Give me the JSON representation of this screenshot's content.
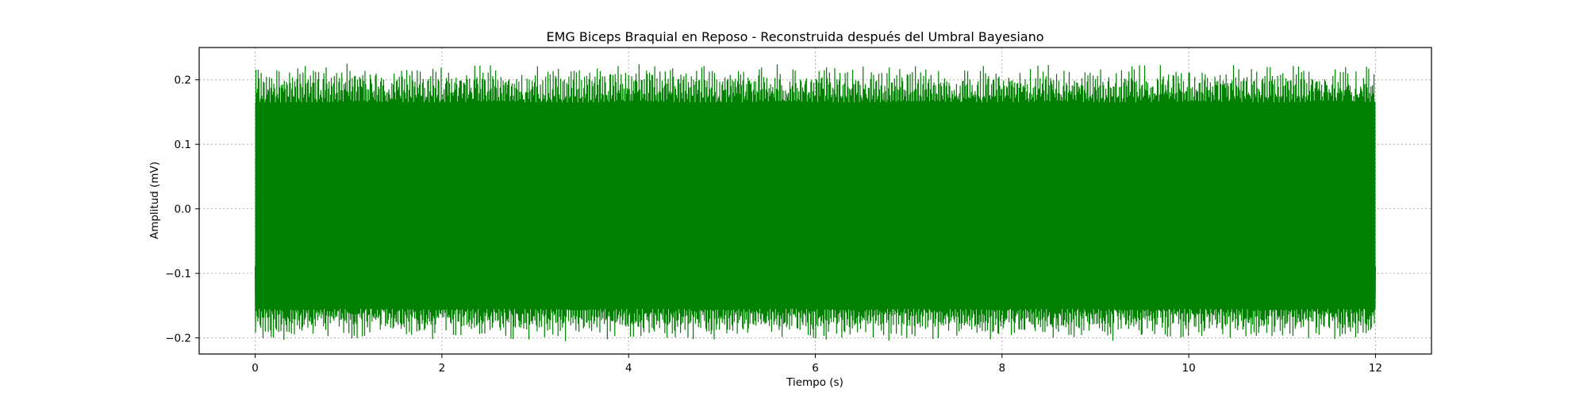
{
  "chart_data": {
    "type": "line",
    "title": "EMG Biceps Braquial en Reposo - Reconstruida después del Umbral Bayesiano",
    "xlabel": "Tiempo (s)",
    "ylabel": "Amplitud (mV)",
    "xlim": [
      -0.6,
      12.6
    ],
    "ylim": [
      -0.225,
      0.25
    ],
    "x_ticks": [
      0,
      2,
      4,
      6,
      8,
      10,
      12
    ],
    "y_ticks": [
      -0.2,
      -0.1,
      0.0,
      0.1,
      0.2
    ],
    "x_tick_labels": [
      "0",
      "2",
      "4",
      "6",
      "8",
      "10",
      "12"
    ],
    "y_tick_labels": [
      "−0.2",
      "−0.1",
      "0.0",
      "0.1",
      "0.2"
    ],
    "grid": true,
    "series": [
      {
        "color": "#008000",
        "x_range": [
          0,
          12
        ],
        "envelope_upper_min": 0.17,
        "envelope_upper_max": 0.225,
        "envelope_lower_min": -0.205,
        "envelope_lower_max": -0.135,
        "dense_upper": 0.165,
        "dense_lower": -0.155
      }
    ]
  }
}
